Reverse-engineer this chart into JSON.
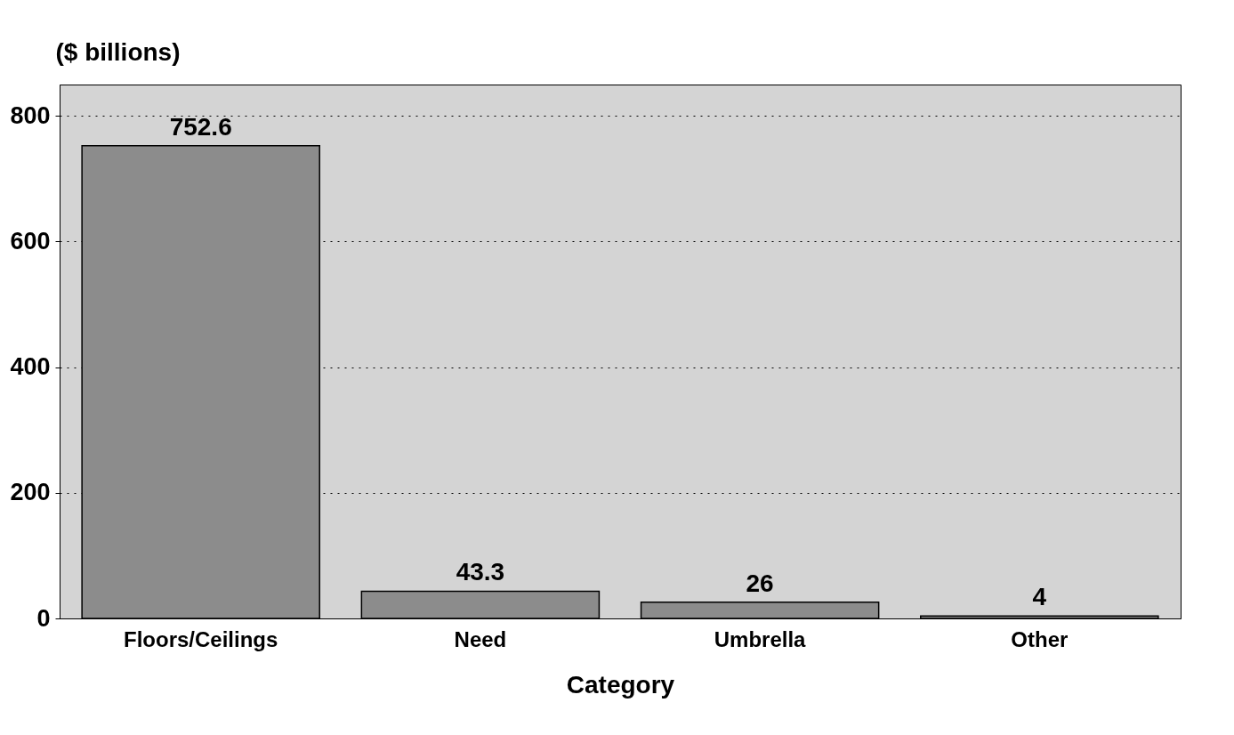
{
  "chart_data": {
    "type": "bar",
    "ylabel": "($ billions)",
    "xlabel": "Category",
    "categories": [
      "Floors/Ceilings",
      "Need",
      "Umbrella",
      "Other"
    ],
    "values": [
      752.6,
      43.3,
      26,
      4
    ],
    "color": "#8c8c8c",
    "ylim": [
      0,
      850
    ],
    "yticks": [
      0,
      200,
      400,
      600,
      800
    ],
    "grid": "y",
    "data_labels": true
  }
}
